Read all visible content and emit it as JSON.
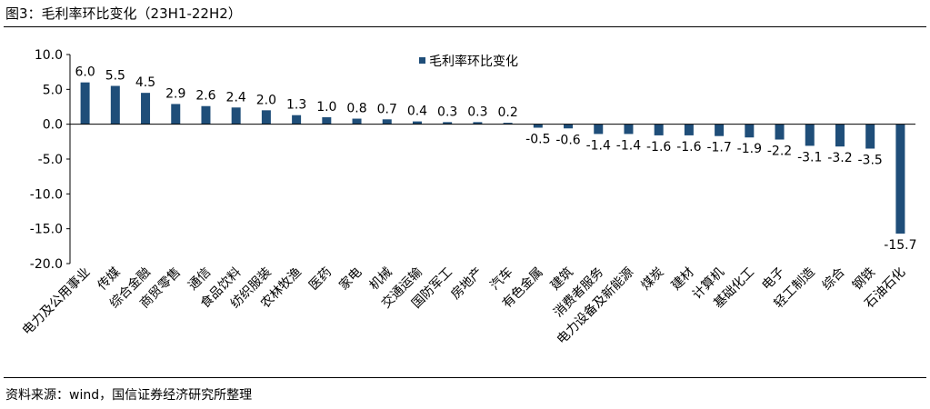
{
  "header": {
    "title": "图3：毛利率环比变化（23H1-22H2）"
  },
  "footer": {
    "source": "资料来源：wind，国信证券经济研究所整理"
  },
  "chart_data": {
    "type": "bar",
    "title": "",
    "xlabel": "",
    "ylabel": "",
    "ylim": [
      -20,
      10
    ],
    "yticks": [
      10,
      5,
      0,
      -5,
      -10,
      -15,
      -20
    ],
    "ytick_labels": [
      "10.0",
      "5.0",
      "0.0",
      "-5.0",
      "-10.0",
      "-15.0",
      "-20.0"
    ],
    "grid": false,
    "legend": {
      "position": "top-center"
    },
    "color": "#1f4e79",
    "categories": [
      "电力及公用事业",
      "传媒",
      "综合金融",
      "商贸零售",
      "通信",
      "食品饮料",
      "纺织服装",
      "农林牧渔",
      "医药",
      "家电",
      "机械",
      "交通运输",
      "国防军工",
      "房地产",
      "汽车",
      "有色金属",
      "建筑",
      "消费者服务",
      "电力设备及新能源",
      "煤炭",
      "建材",
      "计算机",
      "基础化工",
      "电子",
      "轻工制造",
      "综合",
      "钢铁",
      "石油石化"
    ],
    "series": [
      {
        "name": "毛利率环比变化",
        "values": [
          6.0,
          5.5,
          4.5,
          2.9,
          2.6,
          2.4,
          2.0,
          1.3,
          1.0,
          0.8,
          0.7,
          0.4,
          0.3,
          0.3,
          0.2,
          -0.5,
          -0.6,
          -1.4,
          -1.4,
          -1.6,
          -1.6,
          -1.7,
          -1.9,
          -2.2,
          -3.1,
          -3.2,
          -3.5,
          -15.7
        ],
        "labels": [
          "6.0",
          "5.5",
          "4.5",
          "2.9",
          "2.6",
          "2.4",
          "2.0",
          "1.3",
          "1.0",
          "0.8",
          "0.7",
          "0.4",
          "0.3",
          "0.3",
          "0.2",
          "-0.5",
          "-0.6",
          "-1.4",
          "-1.4",
          "-1.6",
          "-1.6",
          "-1.7",
          "-1.9",
          "-2.2",
          "-3.1",
          "-3.2",
          "-3.5",
          "-15.7"
        ]
      }
    ]
  }
}
